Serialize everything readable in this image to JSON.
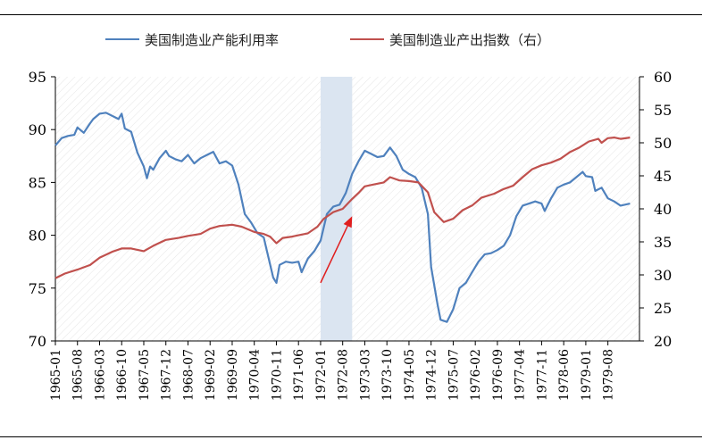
{
  "legend": [
    {
      "label": "美国制造业产能利用率",
      "color": "#4f81bd"
    },
    {
      "label": "美国制造业产出指数（右）",
      "color": "#c0504d"
    }
  ],
  "chart_data": {
    "type": "line",
    "y_left": {
      "min": 70,
      "max": 95,
      "ticks": [
        "70",
        "75",
        "80",
        "85",
        "90",
        "95"
      ]
    },
    "y_right": {
      "min": 20,
      "max": 60,
      "ticks": [
        "20",
        "25",
        "30",
        "35",
        "40",
        "45",
        "50",
        "55",
        "60"
      ]
    },
    "x_start": "1965-01",
    "x_end": "1980-06",
    "x_tick_labels": [
      "1965-01",
      "1965-08",
      "1966-03",
      "1966-10",
      "1967-05",
      "1967-12",
      "1968-07",
      "1969-02",
      "1969-09",
      "1970-04",
      "1970-11",
      "1971-06",
      "1972-01",
      "1972-08",
      "1973-03",
      "1973-10",
      "1974-05",
      "1974-12",
      "1975-07",
      "1976-02",
      "1976-09",
      "1977-04",
      "1977-11",
      "1978-06",
      "1979-01",
      "1979-08"
    ],
    "shaded_region": {
      "from": "1972-01",
      "to": "1972-11",
      "color": "#dbe5f1"
    },
    "annotation_arrow": {
      "from": {
        "x": "1972-01",
        "y": 75.5
      },
      "to": {
        "x": "1972-11",
        "y": 81.8
      },
      "color": "#e01e1e"
    },
    "series": [
      {
        "name": "美国制造业产能利用率",
        "axis": "left",
        "color": "#4f81bd",
        "points": [
          [
            "1965-01",
            88.5
          ],
          [
            "1965-03",
            89.2
          ],
          [
            "1965-05",
            89.4
          ],
          [
            "1965-07",
            89.5
          ],
          [
            "1965-08",
            90.2
          ],
          [
            "1965-10",
            89.7
          ],
          [
            "1965-12",
            90.6
          ],
          [
            "1966-01",
            91.0
          ],
          [
            "1966-03",
            91.5
          ],
          [
            "1966-05",
            91.6
          ],
          [
            "1966-07",
            91.3
          ],
          [
            "1966-09",
            91.0
          ],
          [
            "1966-10",
            91.5
          ],
          [
            "1966-11",
            90.1
          ],
          [
            "1967-01",
            89.8
          ],
          [
            "1967-03",
            87.8
          ],
          [
            "1967-05",
            86.5
          ],
          [
            "1967-06",
            85.4
          ],
          [
            "1967-07",
            86.5
          ],
          [
            "1967-08",
            86.2
          ],
          [
            "1967-10",
            87.3
          ],
          [
            "1967-12",
            88.0
          ],
          [
            "1968-01",
            87.5
          ],
          [
            "1968-03",
            87.2
          ],
          [
            "1968-05",
            87.0
          ],
          [
            "1968-07",
            87.6
          ],
          [
            "1968-09",
            86.8
          ],
          [
            "1968-11",
            87.3
          ],
          [
            "1969-01",
            87.6
          ],
          [
            "1969-03",
            87.9
          ],
          [
            "1969-05",
            86.8
          ],
          [
            "1969-07",
            87.0
          ],
          [
            "1969-09",
            86.6
          ],
          [
            "1969-11",
            84.8
          ],
          [
            "1970-01",
            82.0
          ],
          [
            "1970-03",
            81.2
          ],
          [
            "1970-05",
            80.2
          ],
          [
            "1970-07",
            79.8
          ],
          [
            "1970-08",
            78.5
          ],
          [
            "1970-10",
            76.0
          ],
          [
            "1970-11",
            75.5
          ],
          [
            "1970-12",
            77.2
          ],
          [
            "1971-02",
            77.5
          ],
          [
            "1971-04",
            77.4
          ],
          [
            "1971-06",
            77.5
          ],
          [
            "1971-07",
            76.5
          ],
          [
            "1971-09",
            77.8
          ],
          [
            "1971-11",
            78.5
          ],
          [
            "1972-01",
            79.5
          ],
          [
            "1972-03",
            82.0
          ],
          [
            "1972-05",
            82.7
          ],
          [
            "1972-07",
            82.9
          ],
          [
            "1972-09",
            84.0
          ],
          [
            "1972-11",
            85.8
          ],
          [
            "1973-01",
            87.0
          ],
          [
            "1973-03",
            88.0
          ],
          [
            "1973-05",
            87.7
          ],
          [
            "1973-07",
            87.4
          ],
          [
            "1973-09",
            87.5
          ],
          [
            "1973-11",
            88.3
          ],
          [
            "1974-01",
            87.5
          ],
          [
            "1974-03",
            86.2
          ],
          [
            "1974-05",
            85.8
          ],
          [
            "1974-07",
            85.5
          ],
          [
            "1974-09",
            84.5
          ],
          [
            "1974-11",
            82.0
          ],
          [
            "1974-12",
            77.0
          ],
          [
            "1975-02",
            73.5
          ],
          [
            "1975-03",
            72.0
          ],
          [
            "1975-05",
            71.8
          ],
          [
            "1975-07",
            73.0
          ],
          [
            "1975-09",
            75.0
          ],
          [
            "1975-11",
            75.5
          ],
          [
            "1976-01",
            76.5
          ],
          [
            "1976-03",
            77.5
          ],
          [
            "1976-05",
            78.2
          ],
          [
            "1976-07",
            78.3
          ],
          [
            "1976-09",
            78.6
          ],
          [
            "1976-11",
            79.0
          ],
          [
            "1977-01",
            80.0
          ],
          [
            "1977-03",
            81.8
          ],
          [
            "1977-05",
            82.8
          ],
          [
            "1977-07",
            83.0
          ],
          [
            "1977-09",
            83.2
          ],
          [
            "1977-11",
            83.0
          ],
          [
            "1977-12",
            82.3
          ],
          [
            "1978-02",
            83.5
          ],
          [
            "1978-04",
            84.5
          ],
          [
            "1978-06",
            84.8
          ],
          [
            "1978-08",
            85.0
          ],
          [
            "1978-10",
            85.5
          ],
          [
            "1978-12",
            86.0
          ],
          [
            "1979-01",
            85.6
          ],
          [
            "1979-03",
            85.5
          ],
          [
            "1979-04",
            84.2
          ],
          [
            "1979-06",
            84.5
          ],
          [
            "1979-08",
            83.5
          ],
          [
            "1979-10",
            83.2
          ],
          [
            "1979-12",
            82.8
          ],
          [
            "1980-03",
            83.0
          ]
        ]
      },
      {
        "name": "美国制造业产出指数（右）",
        "axis": "right",
        "color": "#c0504d",
        "points": [
          [
            "1965-01",
            29.5
          ],
          [
            "1965-04",
            30.2
          ],
          [
            "1965-08",
            30.8
          ],
          [
            "1965-12",
            31.5
          ],
          [
            "1966-03",
            32.6
          ],
          [
            "1966-07",
            33.5
          ],
          [
            "1966-10",
            34.0
          ],
          [
            "1967-01",
            34.0
          ],
          [
            "1967-05",
            33.6
          ],
          [
            "1967-08",
            34.4
          ],
          [
            "1967-12",
            35.3
          ],
          [
            "1968-04",
            35.6
          ],
          [
            "1968-07",
            35.9
          ],
          [
            "1968-11",
            36.2
          ],
          [
            "1969-02",
            37.0
          ],
          [
            "1969-05",
            37.4
          ],
          [
            "1969-09",
            37.6
          ],
          [
            "1969-12",
            37.3
          ],
          [
            "1970-04",
            36.5
          ],
          [
            "1970-07",
            36.2
          ],
          [
            "1970-09",
            35.8
          ],
          [
            "1970-11",
            34.8
          ],
          [
            "1971-01",
            35.6
          ],
          [
            "1971-04",
            35.8
          ],
          [
            "1971-06",
            36.0
          ],
          [
            "1971-09",
            36.3
          ],
          [
            "1971-12",
            37.3
          ],
          [
            "1972-02",
            38.5
          ],
          [
            "1972-05",
            39.5
          ],
          [
            "1972-08",
            40.0
          ],
          [
            "1972-11",
            41.5
          ],
          [
            "1973-01",
            42.4
          ],
          [
            "1973-03",
            43.4
          ],
          [
            "1973-06",
            43.7
          ],
          [
            "1973-09",
            44.0
          ],
          [
            "1973-11",
            44.8
          ],
          [
            "1974-02",
            44.3
          ],
          [
            "1974-05",
            44.2
          ],
          [
            "1974-08",
            44.0
          ],
          [
            "1974-11",
            42.5
          ],
          [
            "1975-01",
            39.5
          ],
          [
            "1975-04",
            38.0
          ],
          [
            "1975-07",
            38.5
          ],
          [
            "1975-10",
            39.8
          ],
          [
            "1976-01",
            40.5
          ],
          [
            "1976-04",
            41.7
          ],
          [
            "1976-08",
            42.3
          ],
          [
            "1976-11",
            43.0
          ],
          [
            "1977-02",
            43.5
          ],
          [
            "1977-05",
            44.8
          ],
          [
            "1977-08",
            46.0
          ],
          [
            "1977-11",
            46.6
          ],
          [
            "1978-02",
            47.0
          ],
          [
            "1978-05",
            47.6
          ],
          [
            "1978-08",
            48.6
          ],
          [
            "1978-11",
            49.3
          ],
          [
            "1979-02",
            50.2
          ],
          [
            "1979-05",
            50.6
          ],
          [
            "1979-06",
            50.0
          ],
          [
            "1979-08",
            50.7
          ],
          [
            "1979-10",
            50.8
          ],
          [
            "1979-12",
            50.6
          ],
          [
            "1980-03",
            50.8
          ]
        ]
      }
    ]
  }
}
